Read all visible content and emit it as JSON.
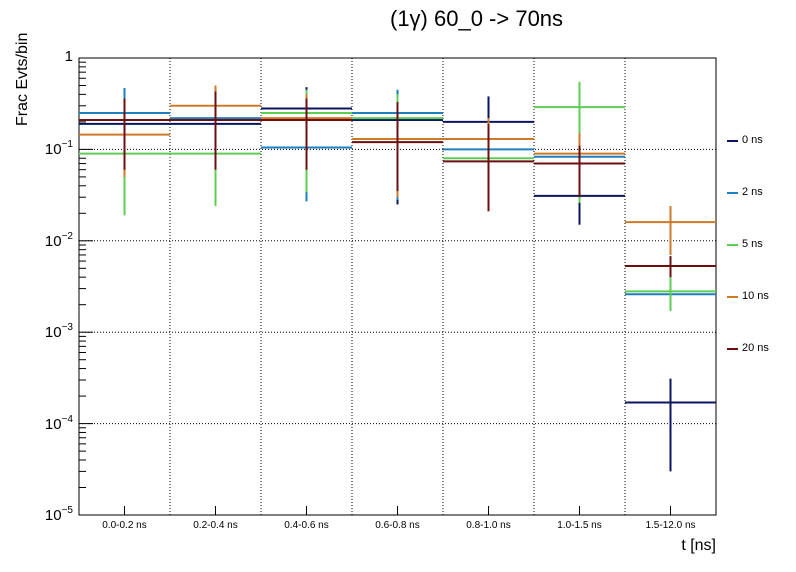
{
  "chart_data": {
    "type": "errorbar-step",
    "title": "(1γ) 60_0 -> 70ns",
    "xlabel": "t [ns]",
    "ylabel": "Frac Evts/bin",
    "yscale": "log",
    "ylim": [
      1e-05,
      1
    ],
    "grid": true,
    "categories": [
      "0.0-0.2 ns",
      "0.2-0.4 ns",
      "0.4-0.6 ns",
      "0.6-0.8 ns",
      "0.8-1.0 ns",
      "1.0-1.5 ns",
      "1.5-12.0 ns"
    ],
    "ytick_labels": [
      {
        "base": "1",
        "exp": ""
      },
      {
        "base": "10",
        "exp": "−1"
      },
      {
        "base": "10",
        "exp": "−2"
      },
      {
        "base": "10",
        "exp": "−3"
      },
      {
        "base": "10",
        "exp": "−4"
      },
      {
        "base": "10",
        "exp": "−5"
      }
    ],
    "legend_position": "right",
    "series": [
      {
        "name": "0 ns",
        "color": "#0a1560",
        "values": [
          0.19,
          0.19,
          0.28,
          0.21,
          0.2,
          0.031,
          0.00017
        ],
        "lo": [
          0.06,
          0.06,
          0.09,
          0.025,
          0.07,
          0.015,
          3e-05
        ],
        "hi": [
          0.35,
          0.36,
          0.48,
          0.36,
          0.38,
          0.06,
          0.00031
        ]
      },
      {
        "name": "2 ns",
        "color": "#1f7fbf",
        "values": [
          0.25,
          0.22,
          0.105,
          0.25,
          0.1,
          0.083,
          0.0026
        ],
        "lo": [
          0.05,
          0.06,
          0.027,
          0.028,
          0.03,
          0.03,
          0.0018
        ],
        "hi": [
          0.47,
          0.4,
          0.22,
          0.45,
          0.2,
          0.13,
          0.0035
        ]
      },
      {
        "name": "5 ns",
        "color": "#5fcd55",
        "values": [
          0.09,
          0.09,
          0.25,
          0.22,
          0.08,
          0.29,
          0.0028
        ],
        "lo": [
          0.019,
          0.024,
          0.034,
          0.035,
          0.03,
          0.026,
          0.0017
        ],
        "hi": [
          0.19,
          0.18,
          0.45,
          0.4,
          0.16,
          0.55,
          0.004
        ]
      },
      {
        "name": "10 ns",
        "color": "#cc7a28",
        "values": [
          0.145,
          0.3,
          0.22,
          0.13,
          0.13,
          0.09,
          0.016
        ],
        "lo": [
          0.05,
          0.06,
          0.06,
          0.03,
          0.04,
          0.03,
          0.007
        ],
        "hi": [
          0.25,
          0.5,
          0.4,
          0.25,
          0.22,
          0.15,
          0.024
        ]
      },
      {
        "name": "20 ns",
        "color": "#6e0f0f",
        "values": [
          0.21,
          0.21,
          0.21,
          0.12,
          0.074,
          0.07,
          0.0053
        ],
        "lo": [
          0.06,
          0.06,
          0.06,
          0.035,
          0.021,
          0.03,
          0.004
        ],
        "hi": [
          0.36,
          0.43,
          0.36,
          0.33,
          0.19,
          0.11,
          0.0068
        ]
      }
    ]
  }
}
